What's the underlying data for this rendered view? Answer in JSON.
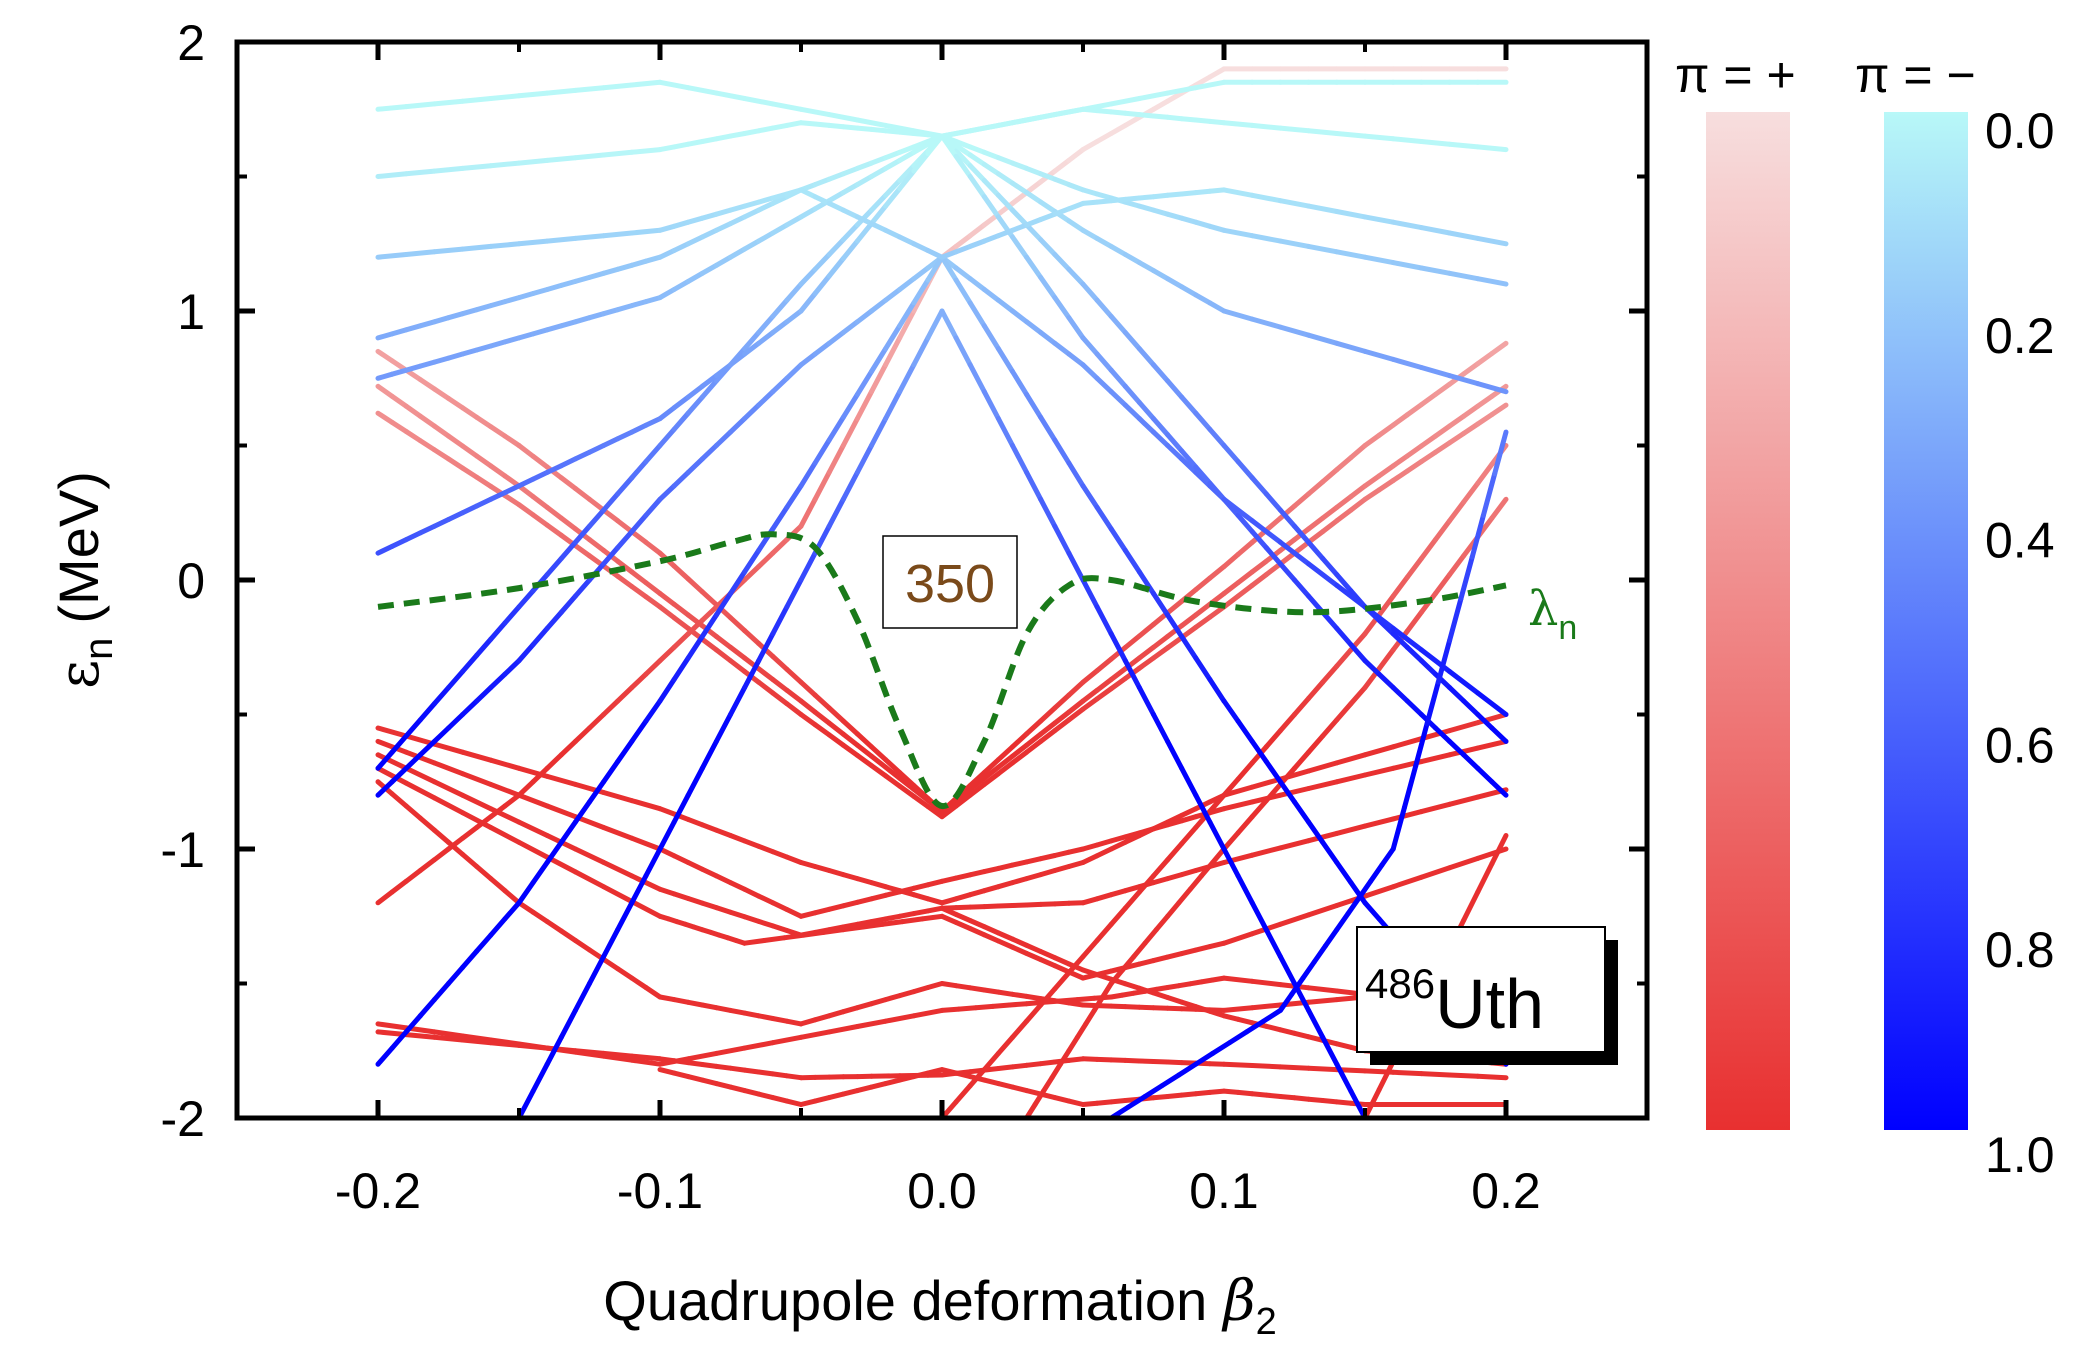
{
  "chart_data": {
    "type": "line",
    "title": "",
    "xlabel": "Quadrupole deformation",
    "xlabel_symbol": "β",
    "xlabel_subscript": "2",
    "ylabel_symbol": "ε",
    "ylabel_subscript": "n",
    "ylabel_unit": "(MeV)",
    "xlim": [
      -0.25,
      0.25
    ],
    "ylim": [
      -2,
      2
    ],
    "xticks": [
      -0.2,
      -0.1,
      0.0,
      0.1,
      0.2
    ],
    "xtick_labels": [
      "-0.2",
      "-0.1",
      "0.0",
      "0.1",
      "0.2"
    ],
    "yticks": [
      -2,
      -1,
      0,
      1,
      2
    ],
    "ytick_labels": [
      "-2",
      "-1",
      "0",
      "1",
      "2"
    ],
    "annotations": {
      "shell_gap": "350",
      "nucleus_mass": "486",
      "nucleus_symbol": "Uth",
      "fermi_symbol": "λ",
      "fermi_subscript": "n"
    },
    "colorbar": {
      "parity_plus_label": "π = +",
      "parity_minus_label": "π = −",
      "ticks": [
        "0.0",
        "0.2",
        "0.4",
        "0.6",
        "0.8",
        "1.0"
      ],
      "plus_gradient": [
        "#f7dede",
        "#e83030"
      ],
      "minus_gradient": [
        "#b8f8f8",
        "#0000ff"
      ]
    },
    "fermi_level": {
      "name": "λn",
      "color": "#1a7a1a",
      "x": [
        -0.2,
        -0.15,
        -0.1,
        -0.075,
        -0.06,
        -0.045,
        -0.03,
        -0.015,
        0.0,
        0.015,
        0.03,
        0.045,
        0.06,
        0.09,
        0.13,
        0.17,
        0.2
      ],
      "y": [
        -0.1,
        -0.03,
        0.07,
        0.14,
        0.17,
        0.12,
        -0.15,
        -0.55,
        -0.84,
        -0.6,
        -0.2,
        -0.02,
        0.0,
        -0.08,
        -0.12,
        -0.08,
        -0.02
      ]
    },
    "series": [
      {
        "parity": "+",
        "x": [
          -0.2,
          -0.15,
          -0.1,
          -0.05,
          0.0,
          0.05,
          0.1,
          0.15,
          0.2
        ],
        "y": [
          0.72,
          0.35,
          -0.05,
          -0.45,
          -0.86,
          -0.45,
          -0.05,
          0.35,
          0.72
        ]
      },
      {
        "parity": "+",
        "x": [
          -0.2,
          -0.15,
          -0.1,
          -0.05,
          0.0,
          0.05,
          0.1,
          0.15,
          0.2
        ],
        "y": [
          0.62,
          0.28,
          -0.1,
          -0.5,
          -0.88,
          -0.48,
          -0.1,
          0.3,
          0.65
        ]
      },
      {
        "parity": "+",
        "x": [
          -0.2,
          -0.15,
          -0.1,
          -0.05,
          0.0,
          0.05,
          0.1,
          0.15,
          0.2
        ],
        "y": [
          0.85,
          0.5,
          0.1,
          -0.38,
          -0.86,
          -0.38,
          0.05,
          0.5,
          0.88
        ]
      },
      {
        "parity": "+",
        "x": [
          -0.2,
          -0.1,
          -0.05,
          0.0,
          0.05,
          0.1,
          0.2
        ],
        "y": [
          -0.55,
          -0.85,
          -1.05,
          -1.2,
          -1.05,
          -0.8,
          -0.5
        ]
      },
      {
        "parity": "+",
        "x": [
          -0.2,
          -0.1,
          -0.05,
          0.0,
          0.05,
          0.1,
          0.2
        ],
        "y": [
          -0.6,
          -1.0,
          -1.25,
          -1.12,
          -1.0,
          -0.85,
          -0.6
        ]
      },
      {
        "parity": "+",
        "x": [
          -0.2,
          -0.1,
          -0.05,
          0.0,
          0.05,
          0.1,
          0.2
        ],
        "y": [
          -0.65,
          -1.15,
          -1.32,
          -1.22,
          -1.2,
          -1.05,
          -0.78
        ]
      },
      {
        "parity": "+",
        "x": [
          -0.2,
          -0.1,
          -0.07,
          0.0,
          0.05,
          0.1,
          0.2
        ],
        "y": [
          -0.7,
          -1.25,
          -1.35,
          -1.25,
          -1.48,
          -1.35,
          -1.0
        ]
      },
      {
        "parity": "+",
        "x": [
          -0.2,
          -0.15,
          -0.1,
          -0.05,
          0.0,
          0.05,
          0.1,
          0.2
        ],
        "y": [
          -0.75,
          -1.2,
          -1.55,
          -1.65,
          -1.5,
          -1.58,
          -1.6,
          -1.5
        ]
      },
      {
        "parity": "+",
        "x": [
          -0.2,
          -0.1,
          0.0,
          0.06,
          0.1,
          0.2
        ],
        "y": [
          -1.65,
          -1.8,
          -1.6,
          -1.55,
          -1.48,
          -1.6
        ]
      },
      {
        "parity": "+",
        "x": [
          -0.2,
          -0.1,
          -0.05,
          0.0,
          0.05,
          0.1,
          0.2
        ],
        "y": [
          -1.68,
          -1.78,
          -1.85,
          -1.84,
          -1.78,
          -1.8,
          -1.85
        ]
      },
      {
        "parity": "+",
        "x": [
          -0.2,
          -0.15,
          -0.1,
          -0.05,
          0.0,
          0.05,
          0.1,
          0.2
        ],
        "y": [
          -1.2,
          -0.8,
          -0.3,
          0.2,
          1.2,
          1.6,
          1.9,
          1.9
        ]
      },
      {
        "parity": "+",
        "x": [
          -0.1,
          -0.05,
          0.0,
          0.05,
          0.1,
          0.15,
          0.2
        ],
        "y": [
          -1.82,
          -1.95,
          -1.82,
          -1.95,
          -1.9,
          -1.95,
          -1.95
        ]
      },
      {
        "parity": "+",
        "x": [
          0.0,
          0.05,
          0.1,
          0.15,
          0.2
        ],
        "y": [
          -1.22,
          -1.45,
          -1.62,
          -1.75,
          -1.8
        ]
      },
      {
        "parity": "+",
        "x": [
          0.03,
          0.06,
          0.1,
          0.15,
          0.2
        ],
        "y": [
          -2.0,
          -1.5,
          -1.0,
          -0.4,
          0.3
        ]
      },
      {
        "parity": "+",
        "x": [
          0.0,
          0.05,
          0.1,
          0.15,
          0.2
        ],
        "y": [
          -2.0,
          -1.4,
          -0.8,
          -0.2,
          0.5
        ]
      },
      {
        "parity": "+",
        "x": [
          0.15,
          0.2
        ],
        "y": [
          -2.0,
          -0.95
        ]
      },
      {
        "parity": "-",
        "x": [
          -0.2,
          -0.15,
          -0.1,
          -0.05,
          0.0,
          0.05,
          0.1,
          0.15,
          0.2
        ],
        "y": [
          -0.8,
          -0.3,
          0.3,
          0.8,
          1.2,
          0.8,
          0.3,
          -0.3,
          -0.8
        ]
      },
      {
        "parity": "-",
        "x": [
          -0.2,
          -0.15,
          -0.1,
          -0.05,
          0.0,
          0.05,
          0.1,
          0.15,
          0.2
        ],
        "y": [
          -0.7,
          -0.1,
          0.5,
          1.1,
          1.65,
          1.1,
          0.5,
          -0.1,
          -0.6
        ]
      },
      {
        "parity": "-",
        "x": [
          -0.2,
          -0.15,
          -0.1,
          -0.05,
          0.0,
          0.05,
          0.1,
          0.15,
          0.2
        ],
        "y": [
          -1.8,
          -1.2,
          -0.45,
          0.35,
          1.2,
          0.35,
          -0.45,
          -1.2,
          -1.8
        ]
      },
      {
        "parity": "-",
        "x": [
          -0.15,
          -0.1,
          -0.05,
          0.0,
          0.05,
          0.1,
          0.15,
          0.2
        ],
        "y": [
          -2.0,
          -1.0,
          0.0,
          1.0,
          0.0,
          -1.0,
          -2.0,
          -2.0
        ]
      },
      {
        "parity": "-",
        "x": [
          -0.2,
          -0.15,
          -0.1,
          -0.05,
          0.0,
          0.05,
          0.1,
          0.2
        ],
        "y": [
          0.1,
          0.35,
          0.6,
          1.0,
          1.65,
          0.9,
          0.3,
          -0.5
        ]
      },
      {
        "parity": "-",
        "x": [
          -0.2,
          -0.15,
          -0.1,
          -0.05,
          0.0,
          0.05,
          0.1,
          0.2
        ],
        "y": [
          0.75,
          0.9,
          1.05,
          1.35,
          1.65,
          1.3,
          1.0,
          0.7
        ]
      },
      {
        "parity": "-",
        "x": [
          -0.2,
          -0.15,
          -0.1,
          -0.05,
          0.0,
          0.05,
          0.1,
          0.2
        ],
        "y": [
          0.9,
          1.05,
          1.2,
          1.45,
          1.65,
          1.45,
          1.3,
          1.1
        ]
      },
      {
        "parity": "-",
        "x": [
          -0.2,
          -0.1,
          -0.05,
          0.0,
          0.05,
          0.1,
          0.2
        ],
        "y": [
          1.5,
          1.6,
          1.7,
          1.65,
          1.75,
          1.7,
          1.6
        ]
      },
      {
        "parity": "-",
        "x": [
          -0.2,
          -0.1,
          0.0,
          0.1,
          0.2
        ],
        "y": [
          1.75,
          1.85,
          1.65,
          1.85,
          1.85
        ]
      },
      {
        "parity": "-",
        "x": [
          -0.2,
          -0.1,
          -0.05,
          0.0,
          0.05,
          0.1,
          0.2
        ],
        "y": [
          1.2,
          1.3,
          1.45,
          1.2,
          1.4,
          1.45,
          1.25
        ]
      },
      {
        "parity": "-",
        "x": [
          0.06,
          0.12,
          0.16,
          0.2
        ],
        "y": [
          -2.0,
          -1.6,
          -1.0,
          0.55
        ]
      }
    ]
  }
}
